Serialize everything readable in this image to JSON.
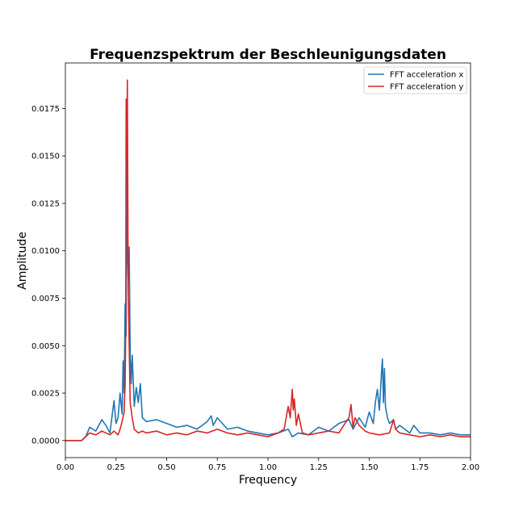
{
  "chart_data": {
    "type": "line",
    "title": "Frequenzspektrum der Beschleunigungsdaten",
    "xlabel": "Frequency",
    "ylabel": "Amplitude",
    "xlim": [
      0.0,
      2.0
    ],
    "ylim": [
      -0.0009,
      0.0199
    ],
    "x_ticks": [
      "0.00",
      "0.25",
      "0.50",
      "0.75",
      "1.00",
      "1.25",
      "1.50",
      "1.75",
      "2.00"
    ],
    "y_ticks": [
      "0.0000",
      "0.0025",
      "0.0050",
      "0.0075",
      "0.0100",
      "0.0125",
      "0.0150",
      "0.0175"
    ],
    "grid": false,
    "legend_position": "top-right",
    "series": [
      {
        "name": "FFT acceleration x",
        "color": "#1f77b4",
        "x": [
          0.0,
          0.08,
          0.1,
          0.12,
          0.15,
          0.18,
          0.2,
          0.22,
          0.24,
          0.25,
          0.26,
          0.27,
          0.28,
          0.285,
          0.29,
          0.295,
          0.3,
          0.303,
          0.306,
          0.31,
          0.315,
          0.32,
          0.325,
          0.33,
          0.34,
          0.35,
          0.36,
          0.37,
          0.38,
          0.4,
          0.45,
          0.5,
          0.55,
          0.6,
          0.65,
          0.7,
          0.72,
          0.73,
          0.75,
          0.8,
          0.85,
          0.9,
          0.95,
          1.0,
          1.05,
          1.1,
          1.12,
          1.15,
          1.2,
          1.25,
          1.3,
          1.35,
          1.4,
          1.42,
          1.45,
          1.48,
          1.5,
          1.52,
          1.53,
          1.54,
          1.55,
          1.56,
          1.565,
          1.57,
          1.575,
          1.58,
          1.59,
          1.6,
          1.62,
          1.63,
          1.65,
          1.7,
          1.72,
          1.75,
          1.8,
          1.85,
          1.9,
          1.95,
          2.0
        ],
        "y": [
          0.0,
          0.0,
          0.0002,
          0.0007,
          0.0005,
          0.0011,
          0.0008,
          0.0004,
          0.0021,
          0.0009,
          0.0012,
          0.0025,
          0.0014,
          0.0042,
          0.0025,
          0.0072,
          0.0055,
          0.0173,
          0.01,
          0.0084,
          0.0102,
          0.0045,
          0.003,
          0.0045,
          0.0018,
          0.0028,
          0.002,
          0.003,
          0.0012,
          0.001,
          0.0011,
          0.0009,
          0.0007,
          0.0008,
          0.0006,
          0.001,
          0.0013,
          0.0008,
          0.0012,
          0.0006,
          0.0007,
          0.0005,
          0.0004,
          0.0003,
          0.0004,
          0.0006,
          0.0002,
          0.0004,
          0.0003,
          0.0007,
          0.0005,
          0.0009,
          0.0011,
          0.0006,
          0.0012,
          0.0007,
          0.0015,
          0.0009,
          0.002,
          0.0027,
          0.0016,
          0.0035,
          0.0043,
          0.002,
          0.0038,
          0.0018,
          0.0012,
          0.0009,
          0.0011,
          0.0006,
          0.0008,
          0.0004,
          0.0008,
          0.0004,
          0.0004,
          0.0003,
          0.0004,
          0.0003,
          0.0003
        ]
      },
      {
        "name": "FFT acceleration y",
        "color": "#d62728",
        "x": [
          0.0,
          0.08,
          0.1,
          0.12,
          0.15,
          0.18,
          0.2,
          0.22,
          0.24,
          0.26,
          0.27,
          0.28,
          0.29,
          0.295,
          0.298,
          0.3,
          0.303,
          0.306,
          0.31,
          0.315,
          0.32,
          0.33,
          0.34,
          0.36,
          0.38,
          0.4,
          0.45,
          0.5,
          0.55,
          0.6,
          0.65,
          0.7,
          0.75,
          0.8,
          0.85,
          0.9,
          0.95,
          1.0,
          1.05,
          1.08,
          1.1,
          1.11,
          1.12,
          1.125,
          1.13,
          1.14,
          1.15,
          1.17,
          1.2,
          1.25,
          1.3,
          1.35,
          1.38,
          1.4,
          1.41,
          1.42,
          1.43,
          1.45,
          1.48,
          1.5,
          1.55,
          1.6,
          1.62,
          1.63,
          1.65,
          1.7,
          1.75,
          1.8,
          1.85,
          1.9,
          1.95,
          2.0
        ],
        "y": [
          0.0,
          0.0,
          0.0002,
          0.0004,
          0.0003,
          0.0005,
          0.0004,
          0.0003,
          0.0005,
          0.0003,
          0.0006,
          0.001,
          0.0015,
          0.003,
          0.006,
          0.018,
          0.015,
          0.019,
          0.008,
          0.005,
          0.002,
          0.0012,
          0.0006,
          0.0004,
          0.0005,
          0.0004,
          0.0005,
          0.0003,
          0.0004,
          0.0003,
          0.0005,
          0.0004,
          0.0006,
          0.0004,
          0.0003,
          0.0004,
          0.0003,
          0.0002,
          0.0004,
          0.0006,
          0.0018,
          0.0012,
          0.0027,
          0.0016,
          0.0022,
          0.0008,
          0.0014,
          0.0004,
          0.0003,
          0.0004,
          0.0005,
          0.0004,
          0.0009,
          0.0012,
          0.0019,
          0.0007,
          0.0012,
          0.0008,
          0.0005,
          0.0004,
          0.0003,
          0.0004,
          0.0011,
          0.0006,
          0.0004,
          0.0003,
          0.0002,
          0.0003,
          0.0002,
          0.0003,
          0.0002,
          0.0002
        ]
      }
    ]
  }
}
